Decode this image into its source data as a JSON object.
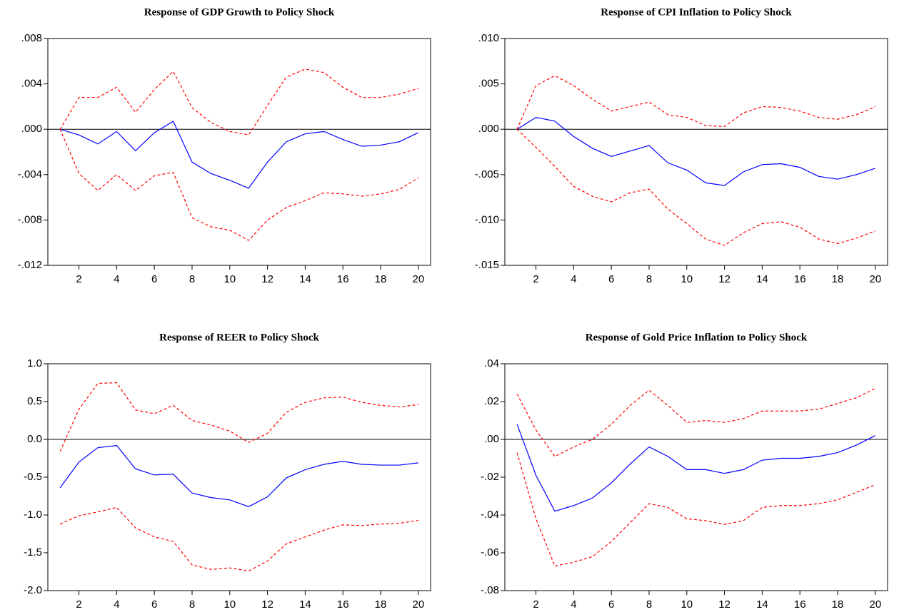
{
  "chart_data": [
    {
      "type": "line",
      "title": "Response of GDP Growth to Policy Shock",
      "x": [
        1,
        2,
        3,
        4,
        5,
        6,
        7,
        8,
        9,
        10,
        11,
        12,
        13,
        14,
        15,
        16,
        17,
        18,
        19,
        20
      ],
      "xlim": [
        0.35,
        20.65
      ],
      "xticks": [
        2,
        4,
        6,
        8,
        10,
        12,
        14,
        16,
        18,
        20
      ],
      "ylim": [
        -0.012,
        0.008
      ],
      "yticks": [
        {
          "value": -0.012,
          "label": "-.012"
        },
        {
          "value": -0.008,
          "label": "-.008"
        },
        {
          "value": -0.004,
          "label": "-.004"
        },
        {
          "value": 0,
          "label": ".000"
        },
        {
          "value": 0.004,
          "label": ".004"
        },
        {
          "value": 0.008,
          "label": ".008"
        }
      ],
      "zero_line": true,
      "series": [
        {
          "color": "#0000ff",
          "values": [
            0,
            -0.0005,
            -0.0013,
            -0.0002,
            -0.0019,
            -0.0003,
            0.0007,
            -0.0029,
            -0.0039,
            -0.0045,
            -0.0052,
            -0.0029,
            -0.0011,
            -0.0004,
            -0.0002,
            -0.0009,
            -0.0015,
            -0.0014,
            -0.0011,
            -0.0003
          ]
        },
        {
          "color": "#ff0000",
          "dashed": true,
          "values": [
            0,
            0.0028,
            0.0028,
            0.0037,
            0.0015,
            0.0035,
            0.0051,
            0.0019,
            0.0006,
            -0.0002,
            -0.0005,
            0.0021,
            0.0046,
            0.0053,
            0.005,
            0.0037,
            0.0028,
            0.0028,
            0.0031,
            0.0036
          ]
        },
        {
          "color": "#ff0000",
          "dashed": true,
          "values": [
            0,
            -0.0039,
            -0.0054,
            -0.004,
            -0.0054,
            -0.0041,
            -0.0038,
            -0.0078,
            -0.0086,
            -0.0089,
            -0.0098,
            -0.008,
            -0.0069,
            -0.0063,
            -0.0056,
            -0.0057,
            -0.0059,
            -0.0057,
            -0.0053,
            -0.0043
          ]
        }
      ]
    },
    {
      "type": "line",
      "title": "Response of CPI Inflation to Policy Shock",
      "x": [
        1,
        2,
        3,
        4,
        5,
        6,
        7,
        8,
        9,
        10,
        11,
        12,
        13,
        14,
        15,
        16,
        17,
        18,
        19,
        20
      ],
      "xlim": [
        0.35,
        20.65
      ],
      "xticks": [
        2,
        4,
        6,
        8,
        10,
        12,
        14,
        16,
        18,
        20
      ],
      "ylim": [
        -0.015,
        0.01
      ],
      "yticks": [
        {
          "value": -0.015,
          "label": "-.015"
        },
        {
          "value": -0.01,
          "label": "-.010"
        },
        {
          "value": -0.005,
          "label": "-.005"
        },
        {
          "value": 0,
          "label": ".000"
        },
        {
          "value": 0.005,
          "label": ".005"
        },
        {
          "value": 0.01,
          "label": ".010"
        }
      ],
      "zero_line": true,
      "series": [
        {
          "color": "#0000ff",
          "values": [
            0,
            0.0013,
            0.0009,
            -0.0008,
            -0.0021,
            -0.003,
            -0.0024,
            -0.0018,
            -0.0037,
            -0.0045,
            -0.0059,
            -0.0062,
            -0.0047,
            -0.0039,
            -0.0038,
            -0.0042,
            -0.0052,
            -0.0055,
            -0.005,
            -0.0043
          ]
        },
        {
          "color": "#ff0000",
          "dashed": true,
          "values": [
            0,
            0.0048,
            0.0059,
            0.0048,
            0.0033,
            0.002,
            0.0025,
            0.003,
            0.0016,
            0.0013,
            0.0004,
            0.0003,
            0.0018,
            0.0025,
            0.0024,
            0.002,
            0.0013,
            0.0011,
            0.0016,
            0.0025
          ]
        },
        {
          "color": "#ff0000",
          "dashed": true,
          "values": [
            0,
            -0.002,
            -0.0041,
            -0.0063,
            -0.0074,
            -0.008,
            -0.007,
            -0.0066,
            -0.0088,
            -0.0104,
            -0.0121,
            -0.0128,
            -0.0114,
            -0.0104,
            -0.0102,
            -0.0108,
            -0.0121,
            -0.0126,
            -0.012,
            -0.0112
          ]
        }
      ]
    },
    {
      "type": "line",
      "title": "Response of REER to Policy Shock",
      "x": [
        1,
        2,
        3,
        4,
        5,
        6,
        7,
        8,
        9,
        10,
        11,
        12,
        13,
        14,
        15,
        16,
        17,
        18,
        19,
        20
      ],
      "xlim": [
        0.35,
        20.65
      ],
      "xticks": [
        2,
        4,
        6,
        8,
        10,
        12,
        14,
        16,
        18,
        20
      ],
      "ylim": [
        -2,
        1
      ],
      "yticks": [
        {
          "value": -2,
          "label": "-2.0"
        },
        -1.5,
        {
          "value": -1,
          "label": "-1.0"
        },
        -0.5,
        {
          "value": 0,
          "label": "0.0"
        },
        0.5,
        {
          "value": 1,
          "label": "1.0"
        }
      ],
      "zero_line": true,
      "series": [
        {
          "color": "#0000ff",
          "values": [
            -0.64,
            -0.3,
            -0.11,
            -0.08,
            -0.39,
            -0.47,
            -0.46,
            -0.71,
            -0.77,
            -0.8,
            -0.89,
            -0.76,
            -0.51,
            -0.4,
            -0.33,
            -0.29,
            -0.33,
            -0.34,
            -0.34,
            -0.31
          ]
        },
        {
          "color": "#ff0000",
          "dashed": true,
          "values": [
            -0.16,
            0.4,
            0.74,
            0.75,
            0.39,
            0.34,
            0.45,
            0.25,
            0.19,
            0.11,
            -0.04,
            0.08,
            0.36,
            0.49,
            0.55,
            0.56,
            0.49,
            0.45,
            0.43,
            0.46
          ]
        },
        {
          "color": "#ff0000",
          "dashed": true,
          "values": [
            -1.12,
            -1.01,
            -0.96,
            -0.9,
            -1.17,
            -1.29,
            -1.35,
            -1.66,
            -1.72,
            -1.7,
            -1.74,
            -1.61,
            -1.38,
            -1.29,
            -1.2,
            -1.13,
            -1.14,
            -1.12,
            -1.11,
            -1.07
          ]
        }
      ]
    },
    {
      "type": "line",
      "title": "Response of Gold Price Inflation to Policy Shock",
      "x": [
        1,
        2,
        3,
        4,
        5,
        6,
        7,
        8,
        9,
        10,
        11,
        12,
        13,
        14,
        15,
        16,
        17,
        18,
        19,
        20
      ],
      "xlim": [
        0.35,
        20.65
      ],
      "xticks": [
        2,
        4,
        6,
        8,
        10,
        12,
        14,
        16,
        18,
        20
      ],
      "ylim": [
        -0.08,
        0.04
      ],
      "yticks": [
        {
          "value": -0.08,
          "label": "-.08"
        },
        {
          "value": -0.06,
          "label": "-.06"
        },
        {
          "value": -0.04,
          "label": "-.04"
        },
        {
          "value": -0.02,
          "label": "-.02"
        },
        {
          "value": 0,
          "label": ".00"
        },
        {
          "value": 0.02,
          "label": ".02"
        },
        {
          "value": 0.04,
          "label": ".04"
        }
      ],
      "zero_line": true,
      "series": [
        {
          "color": "#0000ff",
          "values": [
            0.008,
            -0.019,
            -0.038,
            -0.035,
            -0.031,
            -0.023,
            -0.013,
            -0.004,
            -0.009,
            -0.016,
            -0.016,
            -0.018,
            -0.016,
            -0.011,
            -0.01,
            -0.01,
            -0.009,
            -0.007,
            -0.003,
            0.002
          ]
        },
        {
          "color": "#ff0000",
          "dashed": true,
          "values": [
            0.024,
            0.005,
            -0.009,
            -0.004,
            0,
            0.008,
            0.018,
            0.026,
            0.018,
            0.009,
            0.01,
            0.009,
            0.011,
            0.015,
            0.015,
            0.015,
            0.016,
            0.019,
            0.022,
            0.027
          ]
        },
        {
          "color": "#ff0000",
          "dashed": true,
          "values": [
            -0.007,
            -0.042,
            -0.067,
            -0.065,
            -0.062,
            -0.054,
            -0.044,
            -0.034,
            -0.036,
            -0.042,
            -0.043,
            -0.045,
            -0.043,
            -0.036,
            -0.035,
            -0.035,
            -0.034,
            -0.032,
            -0.028,
            -0.024
          ]
        }
      ]
    }
  ]
}
